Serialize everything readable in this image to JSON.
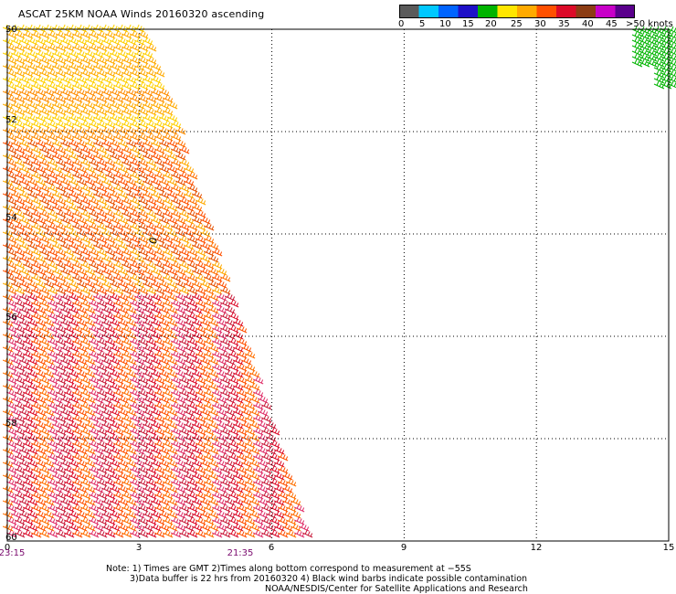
{
  "title": "ASCAT 25KM NOAA Winds 20160320 ascending",
  "colorbar": {
    "labels": [
      "0",
      "5",
      "10",
      "15",
      "20",
      "25",
      "30",
      "35",
      "40",
      "45",
      ">50 knots"
    ],
    "colors": [
      "#5a5a5a",
      "#00c8ff",
      "#0064ff",
      "#1e10c8",
      "#00b400",
      "#ffe600",
      "#ffaa00",
      "#ff5000",
      "#dc0a28",
      "#8c3c14",
      "#c800c8",
      "#5a008c"
    ]
  },
  "axes": {
    "x_ticks": [
      "0",
      "3",
      "6",
      "9",
      "12",
      "15"
    ],
    "y_ticks": [
      "50",
      "52",
      "54",
      "56",
      "58",
      "60"
    ],
    "x_range": [
      0,
      15
    ],
    "y_range": [
      50,
      60
    ]
  },
  "time_labels": [
    {
      "text": "23:15",
      "x": 0
    },
    {
      "text": "21:35",
      "x": 5.7
    }
  ],
  "contamination_marker": "0",
  "notes": [
    "Note: 1) Times are GMT 2)Times along bottom correspond to measurement at −55S",
    "3)Data buffer is 22 hrs from 20160320 4) Black wind barbs indicate possible contamination",
    "NOAA/NESDIS/Center for Satellite Applications and Research"
  ],
  "swaths": [
    {
      "lon_range": [
        0,
        3.1
      ],
      "lat_range": [
        50,
        51.5
      ],
      "speed": "20-30 knots",
      "color": "#ffcc00"
    },
    {
      "lon_range": [
        0,
        5
      ],
      "lat_range": [
        51.5,
        55
      ],
      "speed": "25-35 knots",
      "color": "#ff8800"
    },
    {
      "lon_range": [
        0,
        7
      ],
      "lat_range": [
        55,
        60
      ],
      "speed": "30-40 knots",
      "color": "#dc2040"
    },
    {
      "lon_range": [
        14.4,
        15
      ],
      "lat_range": [
        50,
        51.2
      ],
      "speed": "15-20 knots",
      "color": "#00b400"
    }
  ]
}
